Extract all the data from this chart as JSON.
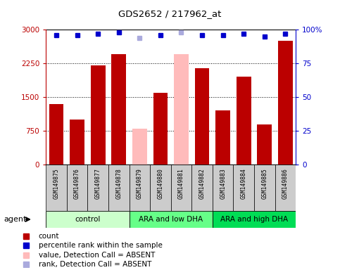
{
  "title": "GDS2652 / 217962_at",
  "samples": [
    "GSM149875",
    "GSM149876",
    "GSM149877",
    "GSM149878",
    "GSM149879",
    "GSM149880",
    "GSM149881",
    "GSM149882",
    "GSM149883",
    "GSM149884",
    "GSM149885",
    "GSM149886"
  ],
  "counts": [
    1350,
    1000,
    2200,
    2450,
    800,
    1600,
    2450,
    2150,
    1200,
    1950,
    900,
    2750
  ],
  "absent": [
    false,
    false,
    false,
    false,
    true,
    false,
    true,
    false,
    false,
    false,
    false,
    false
  ],
  "percentile_ranks": [
    96,
    96,
    97,
    98,
    94,
    96,
    98,
    96,
    96,
    97,
    95,
    97
  ],
  "rank_absent": [
    false,
    false,
    false,
    false,
    true,
    false,
    true,
    false,
    false,
    false,
    false,
    false
  ],
  "ylim_left": [
    0,
    3000
  ],
  "ylim_right": [
    0,
    100
  ],
  "yticks_left": [
    0,
    750,
    1500,
    2250,
    3000
  ],
  "yticks_right": [
    0,
    25,
    50,
    75,
    100
  ],
  "groups": [
    {
      "label": "control",
      "start": 0,
      "end": 4,
      "color": "#ccffcc"
    },
    {
      "label": "ARA and low DHA",
      "start": 4,
      "end": 8,
      "color": "#66ff88"
    },
    {
      "label": "ARA and high DHA",
      "start": 8,
      "end": 12,
      "color": "#00dd55"
    }
  ],
  "bar_color_present": "#bb0000",
  "bar_color_absent": "#ffbbbb",
  "dot_color_present": "#0000cc",
  "dot_color_absent": "#aaaadd",
  "sample_bg_color": "#cccccc",
  "legend_items": [
    {
      "color": "#bb0000",
      "marker": "s",
      "label": "count"
    },
    {
      "color": "#0000cc",
      "marker": "s",
      "label": "percentile rank within the sample"
    },
    {
      "color": "#ffbbbb",
      "marker": "s",
      "label": "value, Detection Call = ABSENT"
    },
    {
      "color": "#aaaadd",
      "marker": "s",
      "label": "rank, Detection Call = ABSENT"
    }
  ]
}
